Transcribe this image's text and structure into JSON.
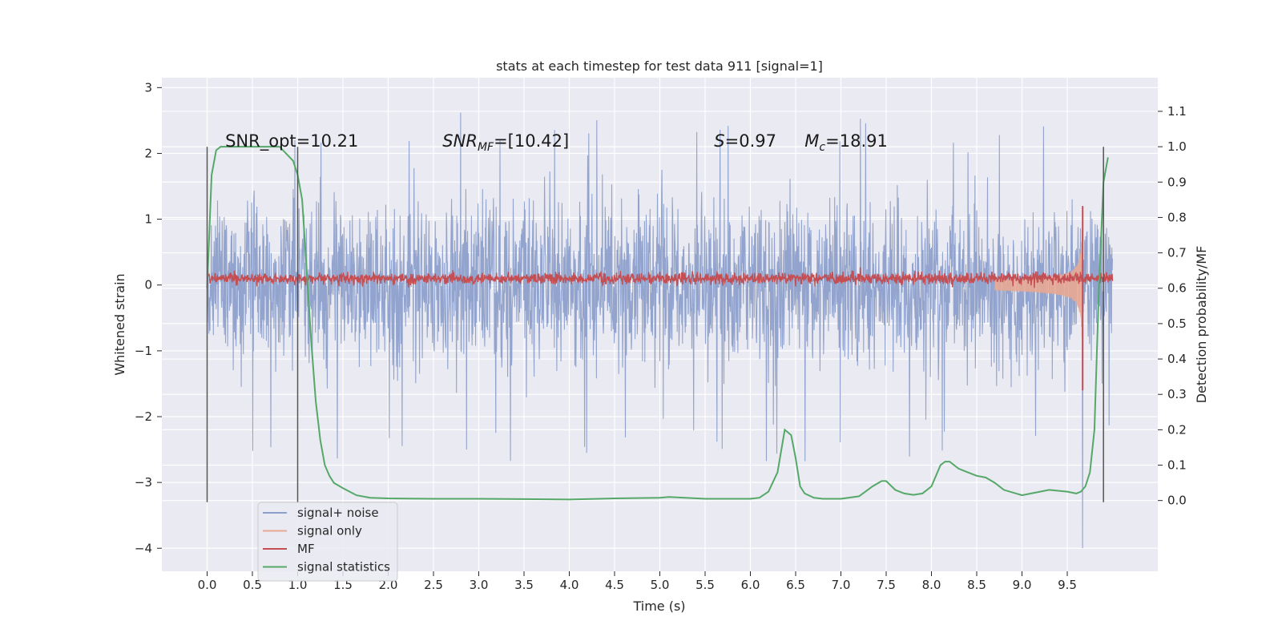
{
  "chart_data": {
    "type": "line",
    "title": "stats at each timestep for test data 911 [signal=1]",
    "xlabel": "Time (s)",
    "ylabel": "Whitened strain",
    "y2label": "Detection probability/MF",
    "xlim": [
      -0.5,
      10.5
    ],
    "ylim": [
      -4.35,
      3.15
    ],
    "y2lim": [
      -0.2,
      1.195
    ],
    "x_ticks": [
      0.0,
      0.5,
      1.0,
      1.5,
      2.0,
      2.5,
      3.0,
      3.5,
      4.0,
      4.5,
      5.0,
      5.5,
      6.0,
      6.5,
      7.0,
      7.5,
      8.0,
      8.5,
      9.0,
      9.5
    ],
    "x_tick_labels": [
      "0.0",
      "0.5",
      "1.0",
      "1.5",
      "2.0",
      "2.5",
      "3.0",
      "3.5",
      "4.0",
      "4.5",
      "5.0",
      "5.5",
      "6.0",
      "6.5",
      "7.0",
      "7.5",
      "8.0",
      "8.5",
      "9.0",
      "9.5"
    ],
    "y_ticks": [
      3,
      2,
      1,
      0,
      -1,
      -2,
      -3,
      -4
    ],
    "y_tick_labels": [
      "3",
      "2",
      "1",
      "0",
      "−1",
      "−2",
      "−3",
      "−4"
    ],
    "y2_ticks": [
      1.1,
      1.0,
      0.9,
      0.8,
      0.7,
      0.6,
      0.5,
      0.4,
      0.3,
      0.2,
      0.1,
      0.0
    ],
    "y2_tick_labels": [
      "1.1",
      "1.0",
      "0.9",
      "0.8",
      "0.7",
      "0.6",
      "0.5",
      "0.4",
      "0.3",
      "0.2",
      "0.1",
      "0.0"
    ],
    "grid": true,
    "legend_position": "lower-left",
    "series": [
      {
        "name": "signal+ noise",
        "color": "#8da0cb",
        "axis": "left",
        "x_range": [
          0.0,
          10.0
        ],
        "typical_amplitude": 1.0,
        "peak_max": 2.75,
        "peak_min": -4.0,
        "peak_min_x": 9.67
      },
      {
        "name": "signal only",
        "color": "#e8a994",
        "axis": "left",
        "chirp_start": 8.7,
        "merger_time": 9.67,
        "peak_amplitude": 1.45
      },
      {
        "name": "MF",
        "color": "#c44e52",
        "axis": "left",
        "x_range": [
          0.0,
          10.0
        ],
        "baseline": 0.1,
        "noise_amplitude": 0.08,
        "spike": {
          "x": 9.67,
          "y_min": -1.6,
          "y_max": 1.2
        }
      },
      {
        "name": "signal statistics",
        "color": "#55a868",
        "axis": "right",
        "x": [
          0.0,
          0.05,
          0.1,
          0.15,
          0.25,
          0.4,
          0.6,
          0.8,
          0.95,
          1.0,
          1.05,
          1.1,
          1.15,
          1.2,
          1.25,
          1.3,
          1.35,
          1.4,
          1.5,
          1.65,
          1.8,
          2.0,
          2.5,
          3.0,
          3.5,
          4.0,
          4.5,
          5.0,
          5.1,
          5.5,
          6.0,
          6.1,
          6.2,
          6.3,
          6.38,
          6.45,
          6.5,
          6.55,
          6.6,
          6.7,
          6.8,
          7.0,
          7.2,
          7.35,
          7.45,
          7.5,
          7.6,
          7.7,
          7.8,
          7.9,
          8.0,
          8.1,
          8.15,
          8.2,
          8.3,
          8.4,
          8.5,
          8.6,
          8.7,
          8.8,
          9.0,
          9.2,
          9.3,
          9.5,
          9.6,
          9.65,
          9.7,
          9.75,
          9.8,
          9.85,
          9.9,
          9.95
        ],
        "y": [
          0.6,
          0.92,
          0.99,
          1.0,
          1.0,
          1.0,
          1.0,
          1.0,
          0.96,
          0.92,
          0.85,
          0.65,
          0.45,
          0.28,
          0.17,
          0.1,
          0.07,
          0.05,
          0.035,
          0.015,
          0.008,
          0.006,
          0.005,
          0.005,
          0.004,
          0.003,
          0.006,
          0.008,
          0.01,
          0.005,
          0.005,
          0.008,
          0.025,
          0.08,
          0.2,
          0.185,
          0.12,
          0.04,
          0.02,
          0.008,
          0.005,
          0.005,
          0.012,
          0.04,
          0.055,
          0.055,
          0.03,
          0.02,
          0.016,
          0.02,
          0.04,
          0.1,
          0.11,
          0.11,
          0.09,
          0.08,
          0.07,
          0.065,
          0.05,
          0.03,
          0.015,
          0.025,
          0.03,
          0.025,
          0.02,
          0.025,
          0.04,
          0.08,
          0.2,
          0.6,
          0.9,
          0.97
        ]
      }
    ],
    "vertical_lines": [
      {
        "x": 0.0,
        "y_top": 2.1,
        "y_bottom": -3.3
      },
      {
        "x": 1.0,
        "y_top": 2.1,
        "y_bottom": -3.3
      },
      {
        "x": 9.9,
        "y_top": 2.1,
        "y_bottom": -3.3
      }
    ],
    "annotations": [
      {
        "name": "snr-opt",
        "x": 0.2,
        "y": 2.1,
        "text": "SNR_opt=10.21"
      },
      {
        "name": "snr-mf",
        "x": 2.6,
        "y": 2.1,
        "base": "SNR",
        "sub": "MF",
        "rest": "=[10.42]"
      },
      {
        "name": "s-value",
        "x": 5.6,
        "y": 2.1,
        "base": "S",
        "rest": "=0.97"
      },
      {
        "name": "mc-value",
        "x": 6.6,
        "y": 2.1,
        "base": "M",
        "sub": "c",
        "rest": "=18.91"
      }
    ]
  },
  "colors": {
    "background": "#ffffff",
    "plot_background": "#eaeaf2",
    "grid": "#ffffff",
    "text": "#262626",
    "vline": "#555555"
  }
}
